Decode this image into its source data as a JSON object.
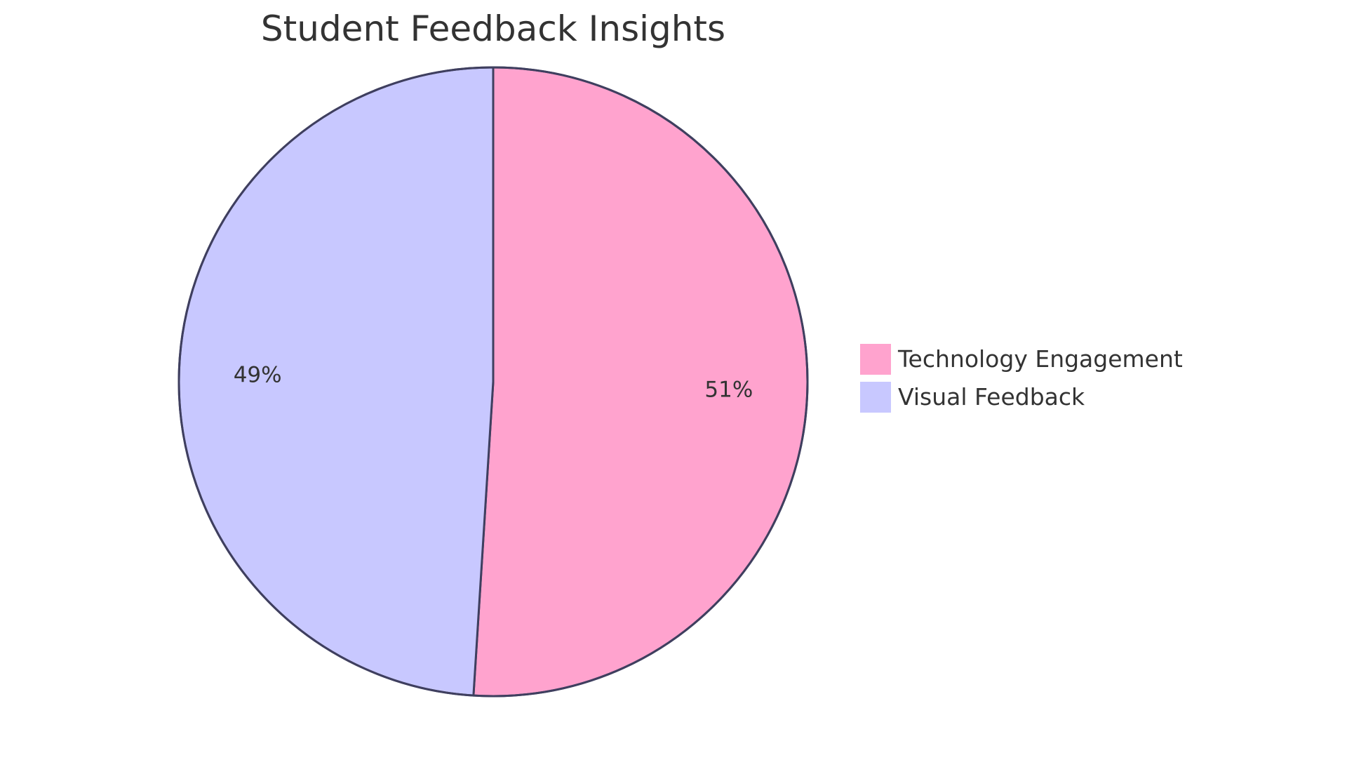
{
  "chart_data": {
    "type": "pie",
    "title": "Student Feedback Insights",
    "slices": [
      {
        "label": "Technology Engagement",
        "value": 51,
        "display": "51%",
        "color": "#FFA3CE"
      },
      {
        "label": "Visual Feedback",
        "value": 49,
        "display": "49%",
        "color": "#C8C8FF"
      }
    ],
    "start_angle_deg": 0,
    "direction": "clockwise",
    "legend_position": "right",
    "stroke_color": "#3F3F5F"
  }
}
